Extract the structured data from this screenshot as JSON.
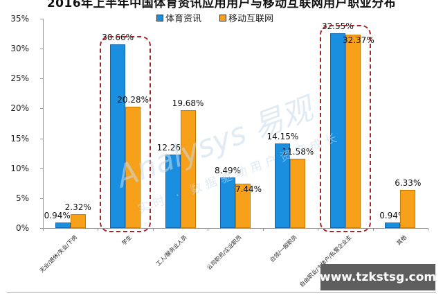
{
  "title": "2016年上半年中国体育资讯应用用户与移动互联网用户职业分布",
  "legend": [
    {
      "label": "体育资讯",
      "color": "#1a8fe0"
    },
    {
      "label": "移动互联网",
      "color": "#f7a01a"
    }
  ],
  "yaxis": {
    "ticks": [
      "35%",
      "30%",
      "25%",
      "20%",
      "15%",
      "10%",
      "5%",
      "0%"
    ]
  },
  "watermark": {
    "brand": "Analysys 易观",
    "slogan": "实时 · 数据驱动用户资产成长"
  },
  "site_badge": "www.tzkstsg.com",
  "chart_data": {
    "type": "bar",
    "title": "2016年上半年中国体育资讯应用用户与移动互联网用户职业分布",
    "xlabel": "",
    "ylabel": "",
    "ylim": [
      0,
      35
    ],
    "yticks": [
      0,
      5,
      10,
      15,
      20,
      25,
      30,
      35
    ],
    "ytick_format": "percent",
    "grid": false,
    "legend_position": "top",
    "categories": [
      "无业/退休/失业/下岗",
      "学生",
      "工人/服务业人员",
      "公司职员/企业职员",
      "白领/一般职员",
      "自由职业/个体户/私营企业主",
      "其他"
    ],
    "series": [
      {
        "name": "体育资讯",
        "color": "#1a8fe0",
        "values": [
          0.94,
          30.66,
          12.26,
          8.49,
          14.15,
          32.55,
          0.94
        ],
        "labels": [
          "0.94%",
          "30.66%",
          "12.26%",
          "8.49%",
          "14.15%",
          "32.55%",
          "0.94%"
        ]
      },
      {
        "name": "移动互联网",
        "color": "#f7a01a",
        "values": [
          2.32,
          20.28,
          19.68,
          7.44,
          11.58,
          32.37,
          6.33
        ],
        "labels": [
          "2.32%",
          "20.28%",
          "19.68%",
          "7.44%",
          "11.58%",
          "32.37%",
          "6.33%"
        ]
      }
    ],
    "annotations": [
      {
        "type": "dashed-rounded-box",
        "category": "学生",
        "color": "#a3262a"
      },
      {
        "type": "dashed-rounded-box",
        "category": "自由职业/个体户/私营企业主",
        "color": "#a3262a"
      }
    ]
  }
}
